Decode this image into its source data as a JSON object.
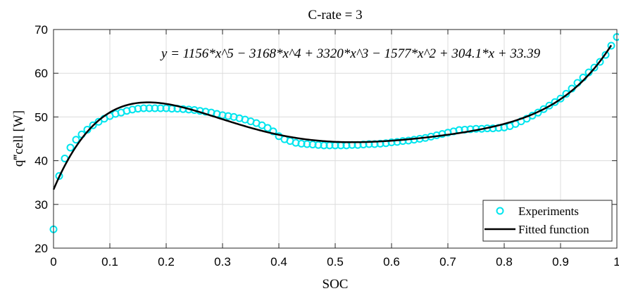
{
  "chart_data": {
    "type": "line",
    "title": "C-rate = 3",
    "xlabel": "SOC",
    "ylabel": "q‴cell [W]",
    "xlim": [
      0,
      1
    ],
    "ylim": [
      20,
      70
    ],
    "xticks": [
      "0",
      "0.1",
      "0.2",
      "0.3",
      "0.4",
      "0.5",
      "0.6",
      "0.7",
      "0.8",
      "0.9",
      "1"
    ],
    "yticks": [
      "20",
      "30",
      "40",
      "50",
      "60",
      "70"
    ],
    "grid": true,
    "legend_position": "bottom-right",
    "annotation": "y = 1156*x^5 − 3168*x^4 + 3320*x^3 − 1577*x^2 + 304.1*x + 33.39",
    "series": [
      {
        "name": "Experiments",
        "style": "markers",
        "color": "#00e5ee",
        "x": [
          0.0,
          0.01,
          0.02,
          0.03,
          0.04,
          0.05,
          0.06,
          0.07,
          0.08,
          0.09,
          0.1,
          0.11,
          0.12,
          0.13,
          0.14,
          0.15,
          0.16,
          0.17,
          0.18,
          0.19,
          0.2,
          0.21,
          0.22,
          0.23,
          0.24,
          0.25,
          0.26,
          0.27,
          0.28,
          0.29,
          0.3,
          0.31,
          0.32,
          0.33,
          0.34,
          0.35,
          0.36,
          0.37,
          0.38,
          0.39,
          0.4,
          0.41,
          0.42,
          0.43,
          0.44,
          0.45,
          0.46,
          0.47,
          0.48,
          0.49,
          0.5,
          0.51,
          0.52,
          0.53,
          0.54,
          0.55,
          0.56,
          0.57,
          0.58,
          0.59,
          0.6,
          0.61,
          0.62,
          0.63,
          0.64,
          0.65,
          0.66,
          0.67,
          0.68,
          0.69,
          0.7,
          0.71,
          0.72,
          0.73,
          0.74,
          0.75,
          0.76,
          0.77,
          0.78,
          0.79,
          0.8,
          0.81,
          0.82,
          0.83,
          0.84,
          0.85,
          0.86,
          0.87,
          0.88,
          0.89,
          0.9,
          0.91,
          0.92,
          0.93,
          0.94,
          0.95,
          0.96,
          0.97,
          0.98,
          0.99,
          1.0
        ],
        "y": [
          24.3,
          36.5,
          40.5,
          43.0,
          44.8,
          46.0,
          47.1,
          48.1,
          48.9,
          49.6,
          50.2,
          50.7,
          51.0,
          51.4,
          51.7,
          51.9,
          52.0,
          52.0,
          52.0,
          52.0,
          52.0,
          51.9,
          51.9,
          51.8,
          51.7,
          51.6,
          51.4,
          51.2,
          51.0,
          50.7,
          50.4,
          50.2,
          50.0,
          49.7,
          49.4,
          49.0,
          48.6,
          48.1,
          47.5,
          46.7,
          45.6,
          44.9,
          44.5,
          44.1,
          43.9,
          43.8,
          43.7,
          43.6,
          43.5,
          43.5,
          43.5,
          43.5,
          43.5,
          43.6,
          43.6,
          43.7,
          43.8,
          43.8,
          43.9,
          44.0,
          44.2,
          44.3,
          44.5,
          44.6,
          44.8,
          45.0,
          45.2,
          45.5,
          45.8,
          46.1,
          46.4,
          46.7,
          47.0,
          47.1,
          47.2,
          47.3,
          47.3,
          47.4,
          47.4,
          47.5,
          47.6,
          47.9,
          48.4,
          49.0,
          49.6,
          50.3,
          51.0,
          51.8,
          52.6,
          53.4,
          54.2,
          55.3,
          56.5,
          57.8,
          59.0,
          60.2,
          61.3,
          62.6,
          64.2,
          66.3,
          68.3
        ]
      },
      {
        "name": "Fitted function",
        "style": "line",
        "color": "#000000",
        "coefficients": [
          1156,
          -3168,
          3320,
          -1577,
          304.1,
          33.39
        ],
        "x_range": [
          0,
          0.99
        ]
      }
    ]
  }
}
